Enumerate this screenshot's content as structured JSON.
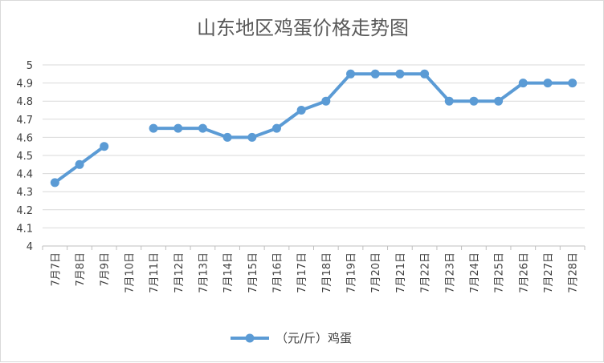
{
  "chart_data": {
    "type": "line",
    "title": "山东地区鸡蛋价格走势图",
    "categories": [
      "7月7日",
      "7月8日",
      "7月9日",
      "7月10日",
      "7月11日",
      "7月12日",
      "7月13日",
      "7月14日",
      "7月15日",
      "7月16日",
      "7月17日",
      "7月18日",
      "7月19日",
      "7月20日",
      "7月21日",
      "7月22日",
      "7月23日",
      "7月24日",
      "7月25日",
      "7月26日",
      "7月27日",
      "7月28日"
    ],
    "series": [
      {
        "name": "（元/斤）鸡蛋",
        "color": "#5b9bd5",
        "values": [
          4.35,
          4.45,
          4.55,
          null,
          4.65,
          4.65,
          4.65,
          4.6,
          4.6,
          4.65,
          4.75,
          4.8,
          4.95,
          4.95,
          4.95,
          4.95,
          4.8,
          4.8,
          4.8,
          4.9,
          4.9,
          4.9
        ]
      }
    ],
    "ylim": [
      4,
      5
    ],
    "yticks": [
      "4",
      "4.1",
      "4.2",
      "4.3",
      "4.4",
      "4.5",
      "4.6",
      "4.7",
      "4.8",
      "4.9",
      "5"
    ],
    "grid": true,
    "legend_position": "bottom"
  }
}
